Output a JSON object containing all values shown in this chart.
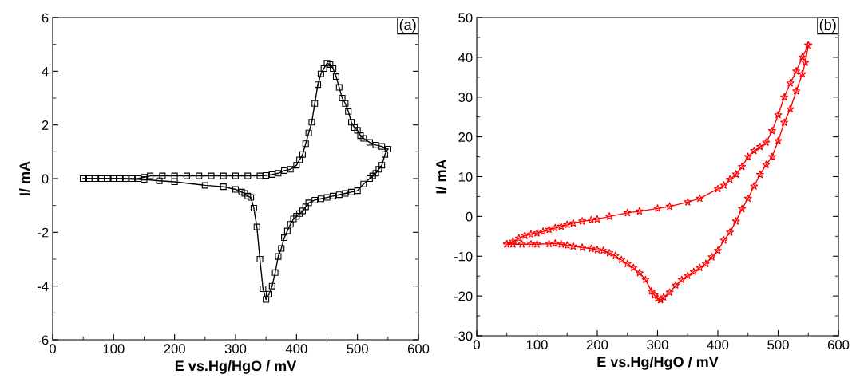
{
  "chart_data": [
    {
      "type": "line",
      "xlabel": "E vs.Hg/HgO / mV",
      "ylabel": "I/ mA",
      "annotations": [
        "(a)"
      ],
      "marker": "square",
      "line_style": "solid",
      "grid": false,
      "legend": false,
      "xlim": [
        0,
        600
      ],
      "xticks": [
        0,
        100,
        200,
        300,
        400,
        500,
        600
      ],
      "ylim": [
        -6,
        6
      ],
      "yticks": [
        -6,
        -4,
        -2,
        0,
        2,
        4,
        6
      ],
      "series": [
        {
          "color": "#000000",
          "x": [
            50,
            60,
            70,
            80,
            90,
            100,
            110,
            120,
            130,
            140,
            150,
            160,
            180,
            200,
            220,
            240,
            260,
            280,
            300,
            320,
            340,
            350,
            360,
            370,
            380,
            390,
            400,
            405,
            410,
            415,
            420,
            425,
            430,
            435,
            440,
            445,
            450,
            455,
            460,
            465,
            470,
            475,
            480,
            485,
            490,
            495,
            500,
            505,
            510,
            520,
            530,
            540,
            550
          ],
          "values": [
            0,
            0,
            0,
            0,
            0,
            0,
            0,
            0,
            0,
            0,
            0.05,
            0.1,
            0.1,
            0.1,
            0.1,
            0.1,
            0.1,
            0.1,
            0.1,
            0.1,
            0.1,
            0.12,
            0.15,
            0.2,
            0.3,
            0.35,
            0.5,
            0.7,
            0.9,
            1.3,
            1.7,
            2.1,
            2.8,
            3.5,
            3.9,
            4.1,
            4.3,
            4.25,
            4.1,
            3.8,
            3.4,
            3.0,
            2.8,
            2.5,
            2.1,
            1.9,
            1.8,
            1.6,
            1.5,
            1.35,
            1.25,
            1.2,
            1.1
          ]
        },
        {
          "color": "#000000",
          "x": [
            50,
            100,
            150,
            175,
            200,
            250,
            280,
            300,
            310,
            315,
            320,
            325,
            330,
            335,
            340,
            345,
            350,
            355,
            360,
            365,
            370,
            375,
            380,
            385,
            390,
            395,
            400,
            405,
            410,
            415,
            420,
            430,
            440,
            450,
            460,
            470,
            480,
            490,
            500,
            510,
            520,
            525,
            530,
            535,
            540,
            545,
            550
          ],
          "values": [
            0,
            0,
            -0.03,
            -0.08,
            -0.12,
            -0.25,
            -0.3,
            -0.4,
            -0.5,
            -0.55,
            -0.65,
            -0.7,
            -1.1,
            -1.8,
            -3.0,
            -4.1,
            -4.5,
            -4.3,
            -4.0,
            -3.5,
            -2.9,
            -2.6,
            -2.2,
            -1.95,
            -1.7,
            -1.5,
            -1.4,
            -1.3,
            -1.2,
            -1.05,
            -0.9,
            -0.8,
            -0.75,
            -0.7,
            -0.65,
            -0.6,
            -0.55,
            -0.5,
            -0.45,
            -0.2,
            0,
            0.1,
            0.2,
            0.35,
            0.5,
            0.9,
            1.1
          ]
        }
      ]
    },
    {
      "type": "line",
      "xlabel": "E vs.Hg/HgO / mV",
      "ylabel": "I/ mA",
      "annotations": [
        "(b)"
      ],
      "marker": "star",
      "line_style": "solid",
      "grid": false,
      "legend": false,
      "xlim": [
        0,
        600
      ],
      "xticks": [
        0,
        100,
        200,
        300,
        400,
        500,
        600
      ],
      "ylim": [
        -30,
        50
      ],
      "yticks": [
        -30,
        -20,
        -10,
        0,
        10,
        20,
        30,
        40,
        50
      ],
      "series": [
        {
          "color": "#ff0000",
          "x": [
            50,
            60,
            70,
            80,
            90,
            100,
            110,
            120,
            130,
            140,
            150,
            160,
            175,
            190,
            200,
            220,
            250,
            270,
            300,
            320,
            350,
            370,
            400,
            410,
            420,
            430,
            440,
            450,
            460,
            470,
            480,
            490,
            500,
            510,
            520,
            530,
            540,
            550
          ],
          "values": [
            -7,
            -6.3,
            -5.5,
            -4.8,
            -4.5,
            -4.2,
            -3.8,
            -3.3,
            -2.9,
            -2.5,
            -2.1,
            -1.7,
            -1.2,
            -0.9,
            -0.7,
            0,
            0.9,
            1.3,
            2.0,
            2.5,
            3.6,
            4.5,
            6.9,
            7.8,
            9.3,
            10.6,
            12.5,
            15.0,
            16.5,
            17.5,
            18.6,
            21.5,
            25.5,
            30,
            33.5,
            36.5,
            40.0,
            43.0
          ]
        },
        {
          "color": "#ff0000",
          "x": [
            50,
            60,
            75,
            90,
            100,
            120,
            130,
            140,
            150,
            160,
            175,
            190,
            200,
            210,
            220,
            230,
            240,
            250,
            260,
            270,
            280,
            290,
            295,
            300,
            305,
            310,
            320,
            330,
            340,
            350,
            360,
            370,
            380,
            390,
            400,
            410,
            420,
            430,
            440,
            450,
            460,
            470,
            480,
            490,
            500,
            510,
            520,
            530,
            540,
            545,
            550
          ],
          "values": [
            -7,
            -7,
            -7,
            -7.0,
            -7.0,
            -6.9,
            -6.8,
            -7.0,
            -7.3,
            -7.5,
            -7.8,
            -8.1,
            -8.4,
            -8.6,
            -9.2,
            -9.9,
            -10.9,
            -11.9,
            -12.9,
            -14.2,
            -15.9,
            -18.8,
            -19.8,
            -20.6,
            -21,
            -20.3,
            -19.1,
            -17.3,
            -15.9,
            -14.9,
            -13.9,
            -12.9,
            -11.9,
            -10.2,
            -8.6,
            -6,
            -4,
            -1.2,
            1.9,
            4.5,
            7.6,
            10.5,
            13,
            15,
            19,
            23.6,
            27,
            31.5,
            35.8,
            38.7,
            43.0
          ]
        }
      ]
    }
  ]
}
